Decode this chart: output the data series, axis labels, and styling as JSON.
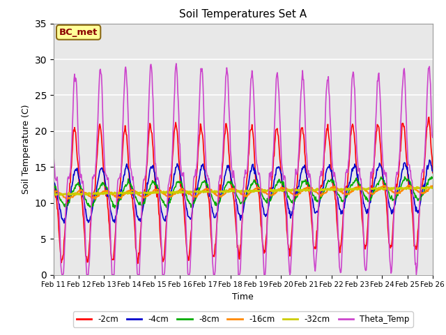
{
  "title": "Soil Temperatures Set A",
  "xlabel": "Time",
  "ylabel": "Soil Temperature (C)",
  "ylim": [
    0,
    35
  ],
  "yticks": [
    0,
    5,
    10,
    15,
    20,
    25,
    30,
    35
  ],
  "x_labels": [
    "Feb 11",
    "Feb 12",
    "Feb 13",
    "Feb 14",
    "Feb 15",
    "Feb 16",
    "Feb 17",
    "Feb 18",
    "Feb 19",
    "Feb 20",
    "Feb 21",
    "Feb 22",
    "Feb 23",
    "Feb 24",
    "Feb 25",
    "Feb 26"
  ],
  "annotation_text": "BC_met",
  "annotation_color": "#8B0000",
  "series": [
    {
      "label": "-2cm",
      "color": "#FF0000",
      "lw": 1.2
    },
    {
      "label": "-4cm",
      "color": "#0000CC",
      "lw": 1.2
    },
    {
      "label": "-8cm",
      "color": "#00AA00",
      "lw": 1.2
    },
    {
      "label": "-16cm",
      "color": "#FF8800",
      "lw": 1.5
    },
    {
      "label": "-32cm",
      "color": "#CCCC00",
      "lw": 2.0
    },
    {
      "label": "Theta_Temp",
      "color": "#CC44CC",
      "lw": 1.2
    }
  ],
  "background_color": "#E8E8E8",
  "title_fontsize": 11,
  "n_points_per_day": 48,
  "days": 15,
  "start_day": 11
}
